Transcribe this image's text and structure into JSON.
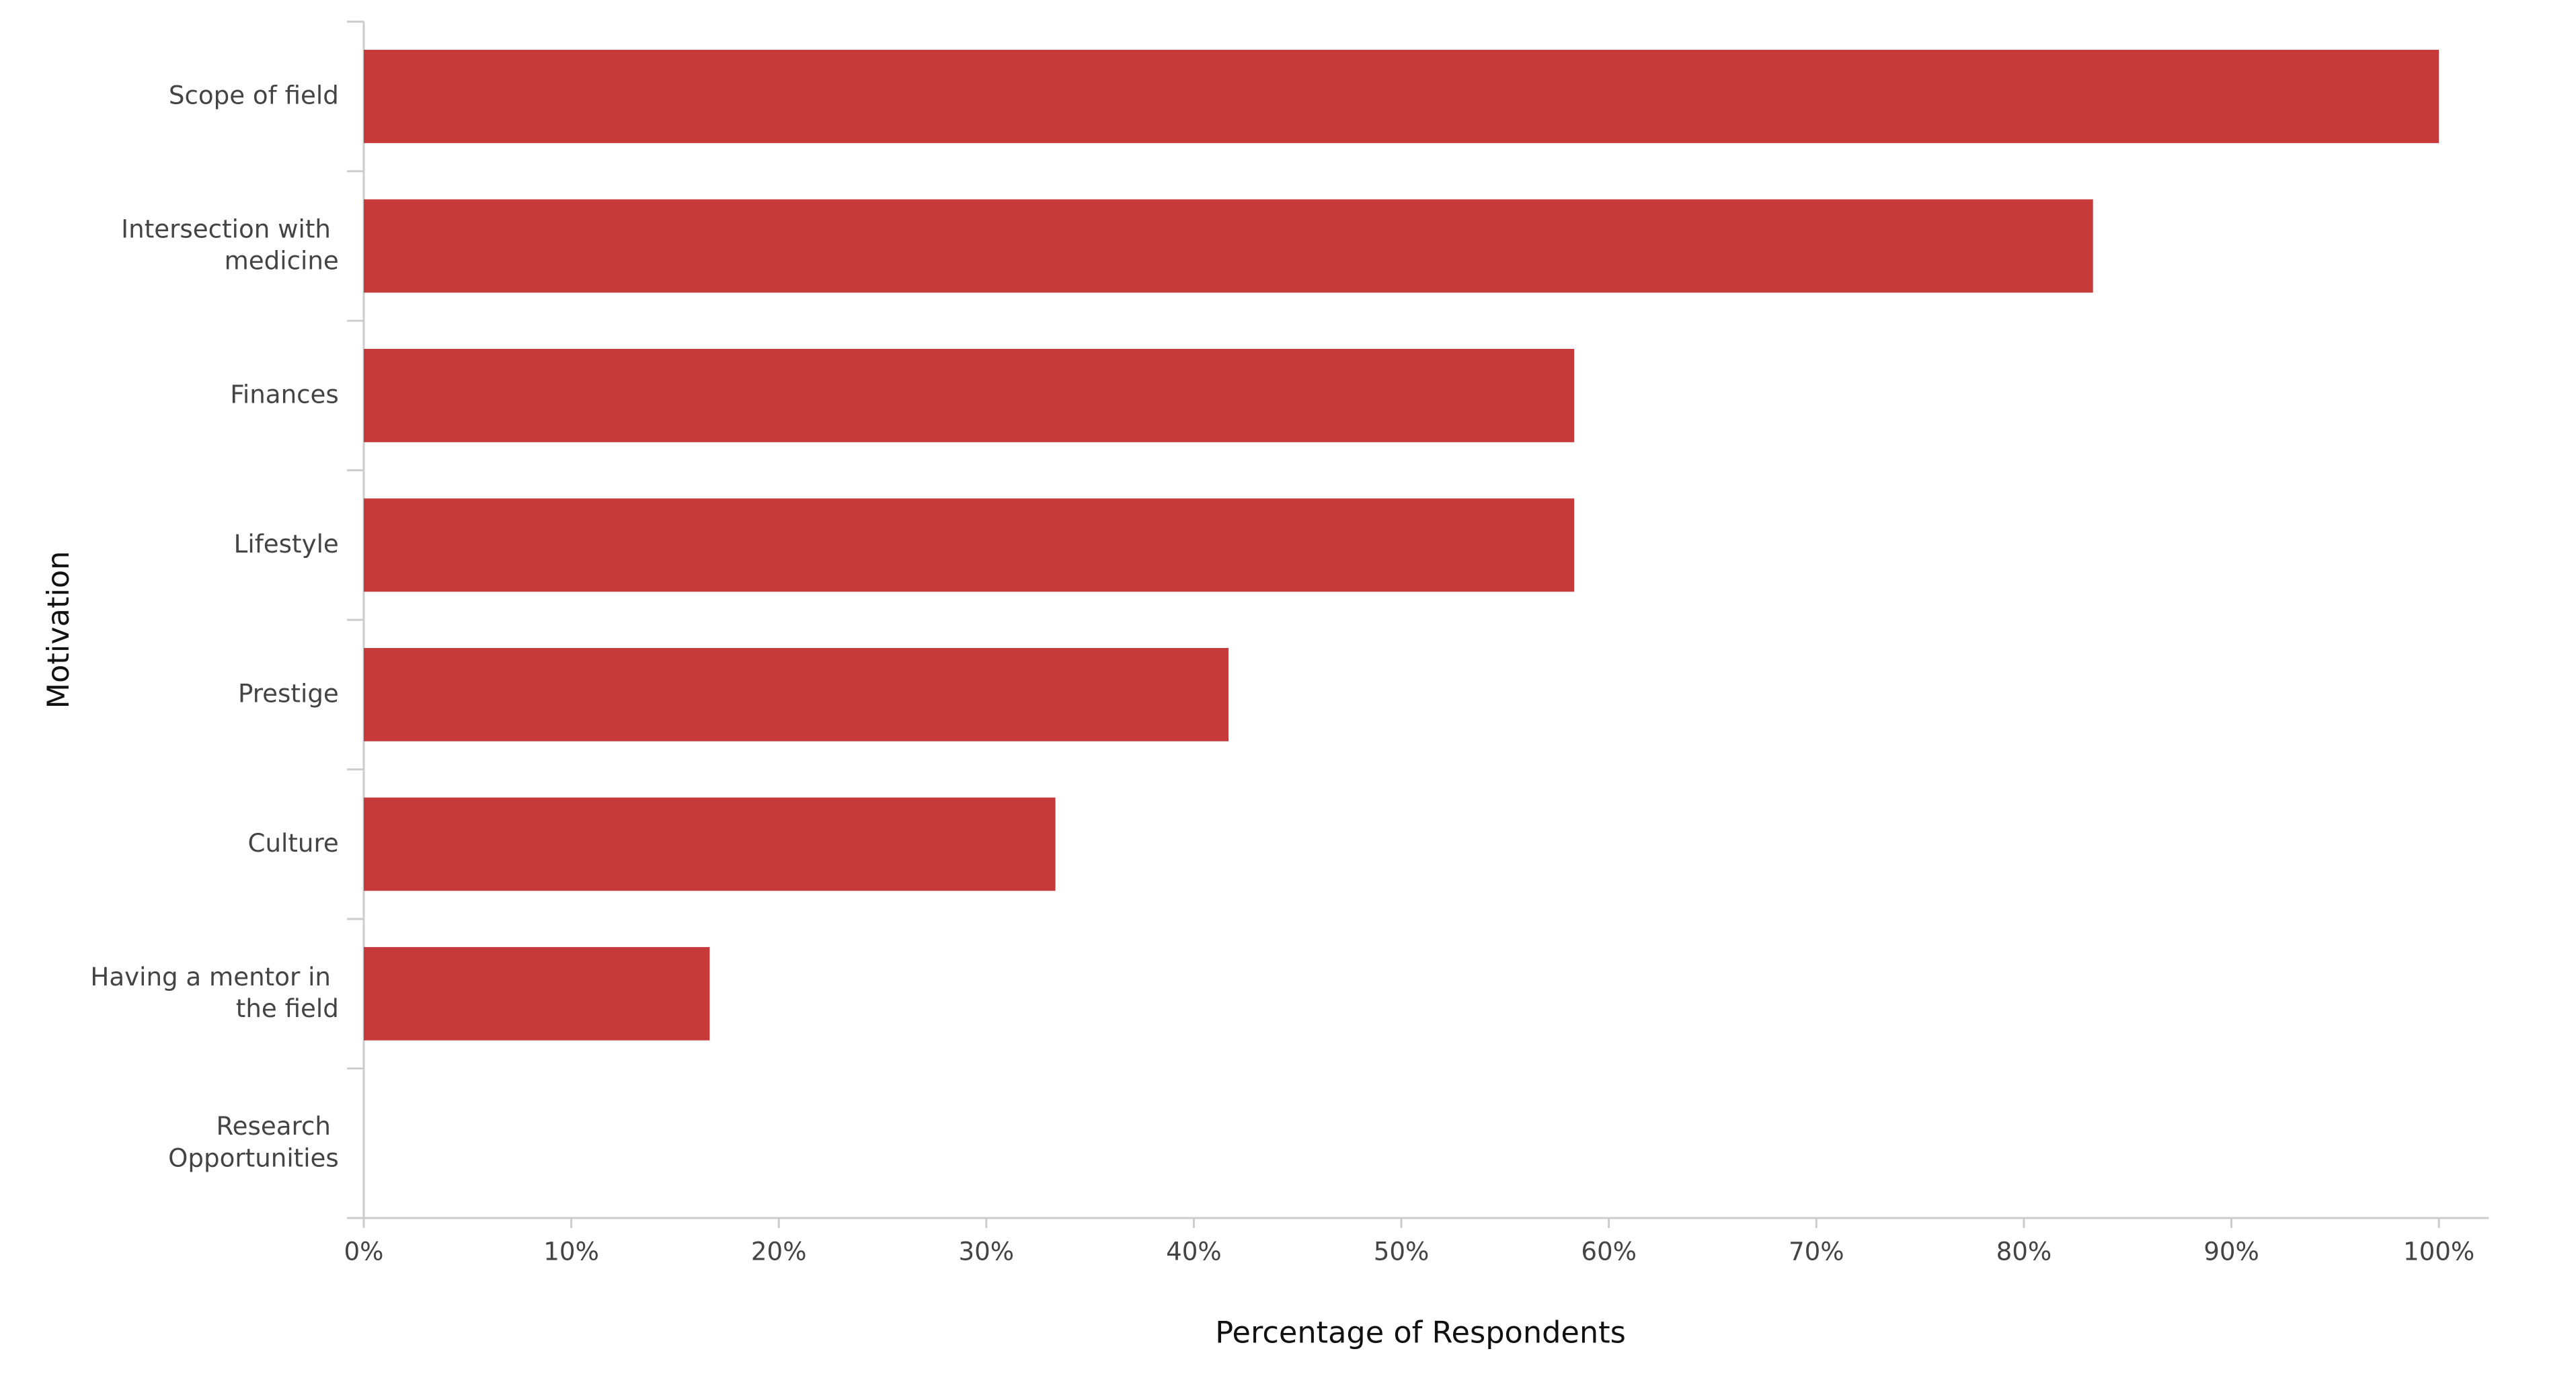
{
  "chart_data": {
    "type": "hbar",
    "xlabel": "Percentage of Respondents",
    "ylabel": "Motivation",
    "categories": [
      "Scope of field",
      "Intersection with medicine",
      "Finances",
      "Lifestyle",
      "Prestige",
      "Culture",
      "Having a mentor in the field",
      "Research Opportunities"
    ],
    "values": [
      100,
      83.33,
      58.33,
      58.33,
      41.67,
      33.33,
      16.67,
      0
    ],
    "color": "#c63b3a",
    "xlim": [
      0,
      100
    ],
    "xticks": [
      {
        "value": 0,
        "label": "0%"
      },
      {
        "value": 10,
        "label": "10%"
      },
      {
        "value": 20,
        "label": "20%"
      },
      {
        "value": 30,
        "label": "30%"
      },
      {
        "value": 40,
        "label": "40%"
      },
      {
        "value": 50,
        "label": "50%"
      },
      {
        "value": 60,
        "label": "60%"
      },
      {
        "value": 70,
        "label": "70%"
      },
      {
        "value": 80,
        "label": "80%"
      },
      {
        "value": 90,
        "label": "90%"
      },
      {
        "value": 100,
        "label": "100%"
      }
    ],
    "grid": false
  }
}
